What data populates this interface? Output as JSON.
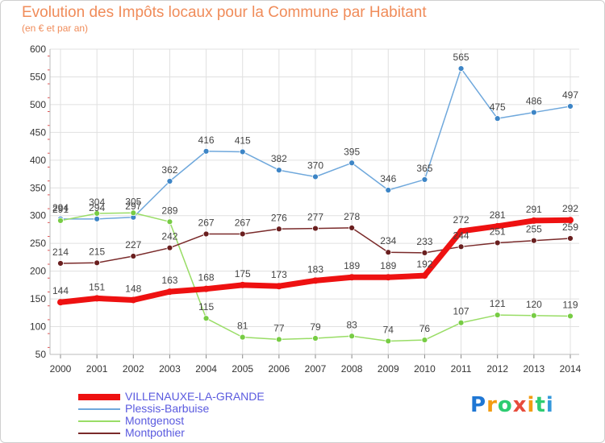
{
  "title": "Evolution des Impôts locaux pour la Commune par Habitant",
  "subtitle": "(en € et par an)",
  "logo": [
    "P",
    "r",
    "o",
    "x",
    "i",
    "t",
    "i"
  ],
  "colors": {
    "title": "#f08c5a",
    "grid": "#e0e0e0",
    "axis_marks": "#e05050"
  },
  "chart_data": {
    "type": "line",
    "x": [
      "2000",
      "2001",
      "2002",
      "2003",
      "2004",
      "2005",
      "2006",
      "2007",
      "2008",
      "2009",
      "2010",
      "2011",
      "2012",
      "2013",
      "2014"
    ],
    "ylim": [
      50,
      600
    ],
    "yticks": [
      50,
      100,
      150,
      200,
      250,
      300,
      350,
      400,
      450,
      500,
      550,
      600
    ],
    "grid": true,
    "legend_position": "bottom-left",
    "series": [
      {
        "name": "VILLENAUXE-LA-GRANDE",
        "color": "#ee1111",
        "marker": "#ee1111",
        "width": 7,
        "values": [
          144,
          151,
          148,
          163,
          168,
          175,
          173,
          183,
          189,
          189,
          192,
          272,
          281,
          291,
          292
        ],
        "labels": [
          "144",
          "151",
          "148",
          "163",
          "168",
          "175",
          "173",
          "183",
          "189",
          "189",
          "192",
          "272",
          "281",
          "291",
          "292"
        ]
      },
      {
        "name": "Plessis-Barbuise",
        "color": "#6fa8dc",
        "marker": "#3d85c6",
        "width": 1.5,
        "values": [
          294,
          294,
          297,
          362,
          416,
          415,
          382,
          370,
          395,
          346,
          365,
          565,
          475,
          486,
          497
        ],
        "labels": [
          "294",
          "294",
          "297",
          "362",
          "416",
          "415",
          "382",
          "370",
          "395",
          "346",
          "365",
          "565",
          "475",
          "486",
          "497"
        ]
      },
      {
        "name": "Montgenost",
        "color": "#99dd66",
        "marker": "#77cc44",
        "width": 1.5,
        "values": [
          291,
          304,
          305,
          289,
          115,
          81,
          77,
          79,
          83,
          74,
          76,
          107,
          121,
          120,
          119
        ],
        "labels": [
          "291",
          "304",
          "305",
          "289",
          "115",
          "81",
          "77",
          "79",
          "83",
          "74",
          "76",
          "107",
          "121",
          "120",
          "119"
        ]
      },
      {
        "name": "Montpothier",
        "color": "#7a2a2a",
        "marker": "#6a1f1f",
        "width": 1.5,
        "values": [
          214,
          215,
          227,
          242,
          267,
          267,
          276,
          277,
          278,
          234,
          233,
          244,
          251,
          255,
          259
        ],
        "labels": [
          "214",
          "215",
          "227",
          "242",
          "267",
          "267",
          "276",
          "277",
          "278",
          "234",
          "233",
          "244",
          "251",
          "255",
          "259"
        ]
      }
    ]
  }
}
